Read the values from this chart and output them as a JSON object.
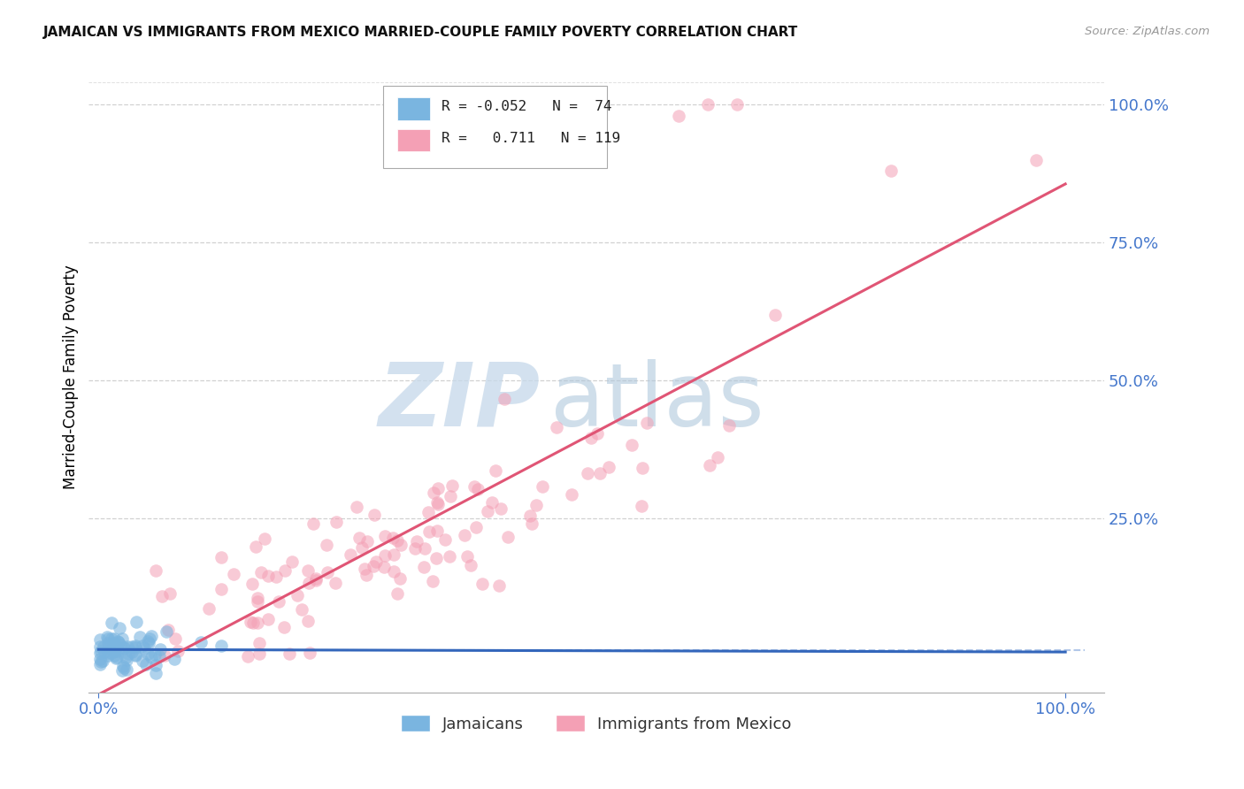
{
  "title": "JAMAICAN VS IMMIGRANTS FROM MEXICO MARRIED-COUPLE FAMILY POVERTY CORRELATION CHART",
  "source": "Source: ZipAtlas.com",
  "ylabel": "Married-Couple Family Poverty",
  "color_jamaican": "#7ab5e0",
  "color_mexico": "#f4a0b5",
  "color_line_jamaican": "#3366bb",
  "color_line_mexico": "#e05575",
  "color_dashed": "#88aadd",
  "background_color": "#ffffff",
  "grid_color": "#cccccc",
  "axis_label_color": "#4477cc",
  "title_color": "#111111",
  "source_color": "#999999",
  "jamaican_label": "Jamaicans",
  "mexico_label": "Immigrants from Mexico",
  "watermark_zip_color": "#c5d8ea",
  "watermark_atlas_color": "#b0c8dc",
  "seed": 7,
  "n_jamaican": 74,
  "n_mexico": 119,
  "R_jamaican": -0.052,
  "R_mexico": 0.711
}
